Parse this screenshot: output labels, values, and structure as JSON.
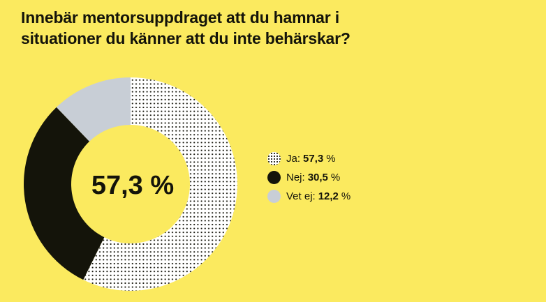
{
  "chart_data": {
    "type": "pie",
    "variant": "donut",
    "title": "Innebär mentorsuppdraget att du hamnar i situationer du känner att du inte behärskar?",
    "center_label": "57,3 %",
    "slices": [
      {
        "label": "Ja:",
        "value": 57.3,
        "value_text": "57,3",
        "color": "#ffffff",
        "pattern": "dots"
      },
      {
        "label": "Nej:",
        "value": 30.5,
        "value_text": "30,5",
        "color": "#14140a"
      },
      {
        "label": "Vet ej:",
        "value": 12.2,
        "value_text": "12,2",
        "color": "#c8ced6"
      }
    ],
    "unit": "%",
    "legend_position": "right"
  },
  "colors": {
    "background": "#fbea5f"
  }
}
